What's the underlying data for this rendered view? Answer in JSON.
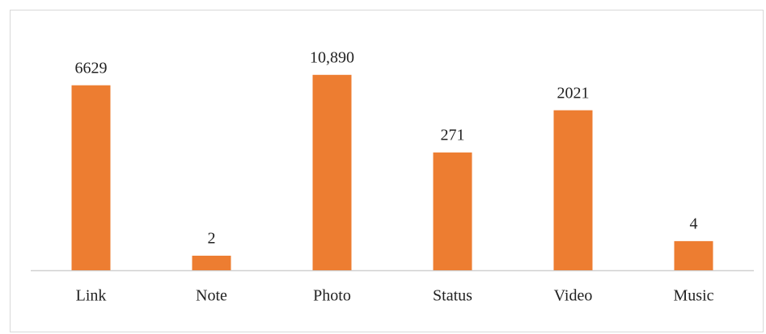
{
  "chart_data": {
    "type": "bar",
    "categories": [
      "Link",
      "Note",
      "Photo",
      "Status",
      "Video",
      "Music"
    ],
    "values": [
      6629,
      2,
      10890,
      271,
      2021,
      4
    ],
    "value_labels": [
      "6629",
      "2",
      "10,890",
      "271",
      "2021",
      "4"
    ],
    "color": "#ed7d31",
    "ylim": [
      1,
      100000
    ],
    "yscale": "log"
  }
}
